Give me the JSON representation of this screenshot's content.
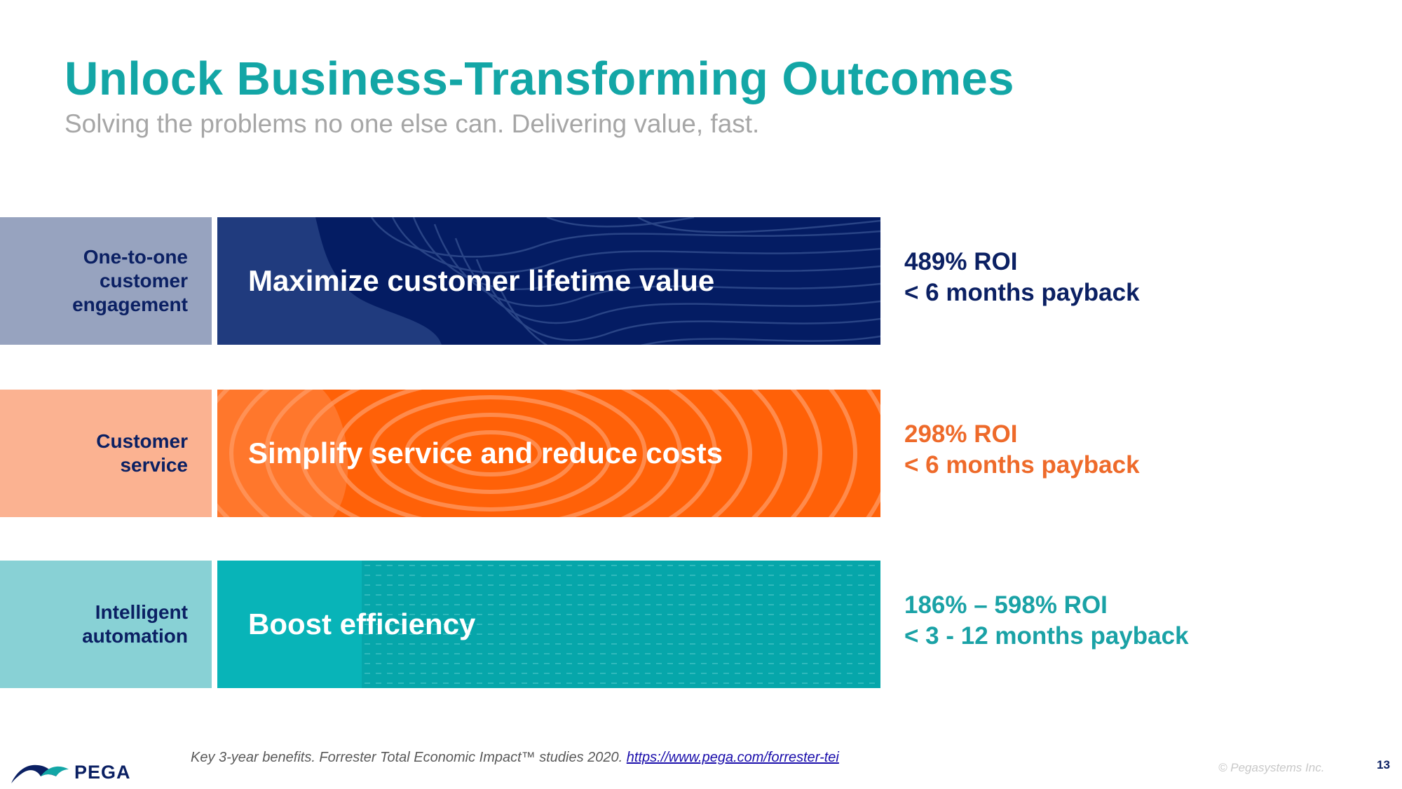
{
  "slide": {
    "title": "Unlock Business-Transforming Outcomes",
    "subtitle": "Solving the problems no one else can. Delivering value, fast."
  },
  "rows": [
    {
      "category": "One-to-one\ncustomer\nengagement",
      "headline": "Maximize customer lifetime value",
      "roi": "489% ROI",
      "payback": "< 6 months payback",
      "label_bg": "#97a3bf",
      "band_bg": "#041c63",
      "accent": "#0b2063"
    },
    {
      "category": "Customer\nservice",
      "headline": "Simplify service and reduce costs",
      "roi": "298% ROI",
      "payback": "< 6 months payback",
      "label_bg": "#fbb291",
      "band_bg": "#ff6108",
      "accent": "#ee6a2a"
    },
    {
      "category": "Intelligent\nautomation",
      "headline": "Boost efficiency",
      "roi": "186% – 598% ROI",
      "payback": "< 3 - 12 months payback",
      "label_bg": "#88d1d5",
      "band_bg": "#08b4b8",
      "accent": "#1aa2a6"
    }
  ],
  "footer": {
    "note": "Key 3-year benefits. Forrester Total Economic Impact™ studies 2020.",
    "link": "https://www.pega.com/forrester-tei",
    "brand": "PEGA",
    "copyright": "© Pegasystems Inc.",
    "page_number": "13"
  }
}
